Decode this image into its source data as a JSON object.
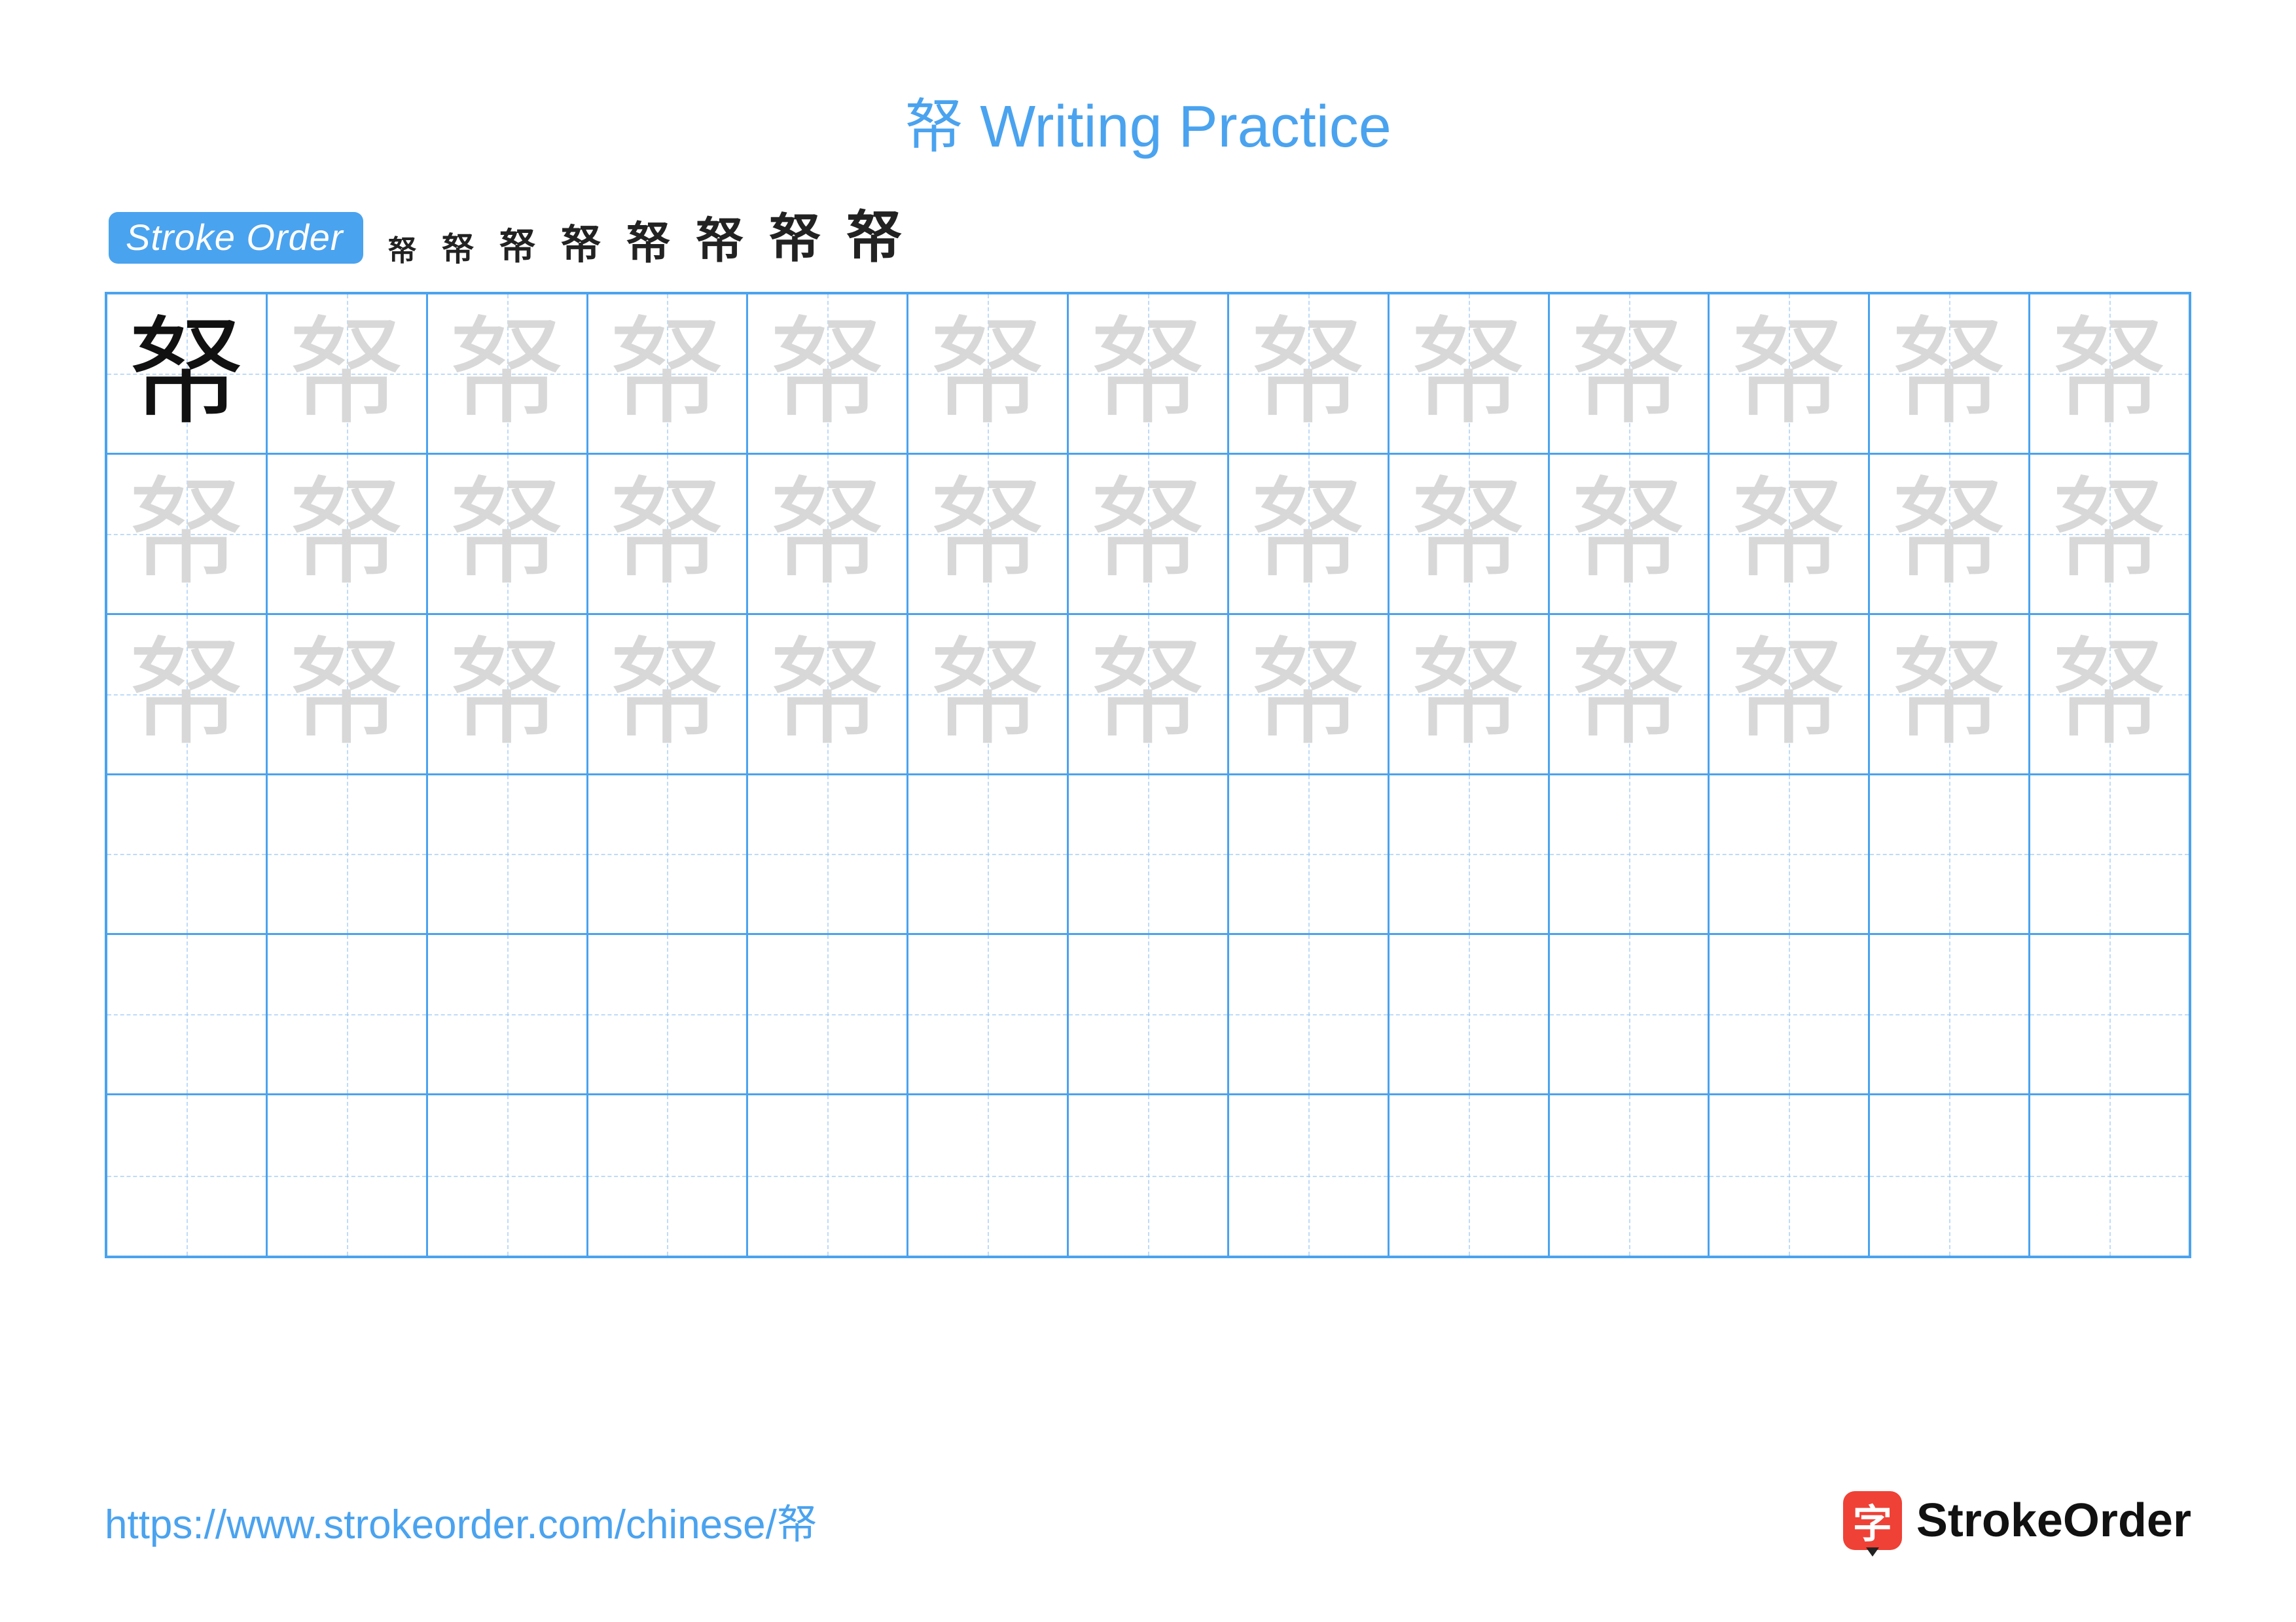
{
  "title": "帑 Writing Practice",
  "title_color": "#4aa3ef",
  "stroke_badge": {
    "label": "Stroke Order",
    "bg": "#4aa3ef"
  },
  "character": "帑",
  "stroke_steps_count": 8,
  "stroke_step_color": "#222222",
  "grid": {
    "rows": 6,
    "cols": 13,
    "border_color": "#4aa3ef",
    "guide_color": "#9cc9f5",
    "model_color": "#111111",
    "trace_color": "#d8d8d8",
    "trace_rows": 3
  },
  "footer": {
    "url": "https://www.strokeorder.com/chinese/帑",
    "url_color": "#4aa3ef",
    "brand_text": "StrokeOrder",
    "brand_icon_char": "字",
    "brand_icon_bg": "#ef4136"
  }
}
